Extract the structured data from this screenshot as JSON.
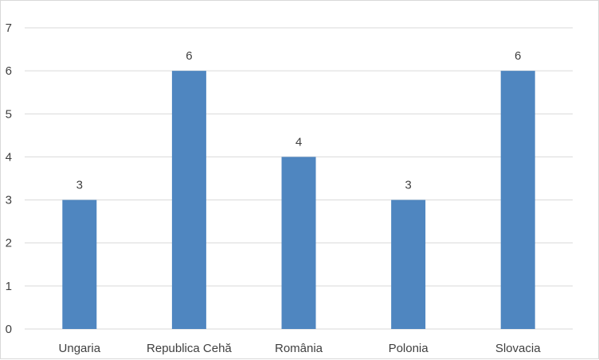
{
  "chart_data": {
    "type": "bar",
    "categories": [
      "Ungaria",
      "Republica Cehă",
      "România",
      "Polonia",
      "Slovacia"
    ],
    "values": [
      3,
      6,
      4,
      3,
      6
    ],
    "title": "",
    "xlabel": "",
    "ylabel": "",
    "ylim": [
      0,
      7
    ],
    "yticks": [
      0,
      1,
      2,
      3,
      4,
      5,
      6,
      7
    ],
    "grid": true,
    "legend": "none",
    "data_labels": true
  },
  "colors": {
    "bar": "#4f86c0",
    "grid": "#d9d9d9",
    "text": "#404040"
  }
}
